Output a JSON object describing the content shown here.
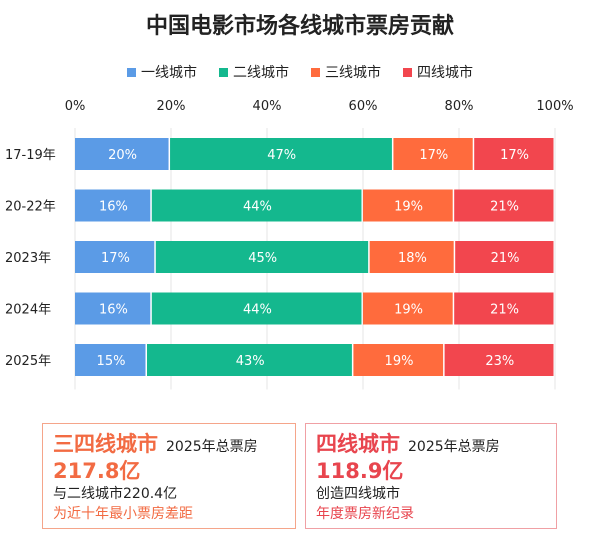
{
  "chart_data": {
    "type": "bar",
    "orientation": "horizontal",
    "stacked": true,
    "title": "中国电影市场各线城市票房贡献",
    "categories": [
      "17-19年",
      "20-22年",
      "2023年",
      "2024年",
      "2025年"
    ],
    "series": [
      {
        "name": "一线城市",
        "color": "#5B9BE6",
        "values": [
          20,
          16,
          17,
          16,
          15
        ]
      },
      {
        "name": "二线城市",
        "color": "#14B88E",
        "values": [
          47,
          44,
          45,
          44,
          43
        ]
      },
      {
        "name": "三线城市",
        "color": "#FF6B3D",
        "values": [
          17,
          19,
          18,
          19,
          19
        ]
      },
      {
        "name": "四线城市",
        "color": "#F2464E",
        "values": [
          17,
          21,
          21,
          21,
          23
        ]
      }
    ],
    "xlim": [
      0,
      100
    ],
    "xticks": [
      "0%",
      "20%",
      "40%",
      "60%",
      "80%",
      "100%"
    ],
    "grid": true,
    "legend": "top",
    "value_suffix": "%"
  },
  "callouts": [
    {
      "highlight": "三四线城市",
      "subtitle": "2025年总票房",
      "value": "217.8亿",
      "line1": "与二线城市220.4亿",
      "line2": "为近十年最小票房差距",
      "color": "#F26B43"
    },
    {
      "highlight": "四线城市",
      "subtitle": "2025年总票房",
      "value": "118.9亿",
      "line1": "创造四线城市",
      "line2": "年度票房新纪录",
      "color": "#E8454E"
    }
  ]
}
